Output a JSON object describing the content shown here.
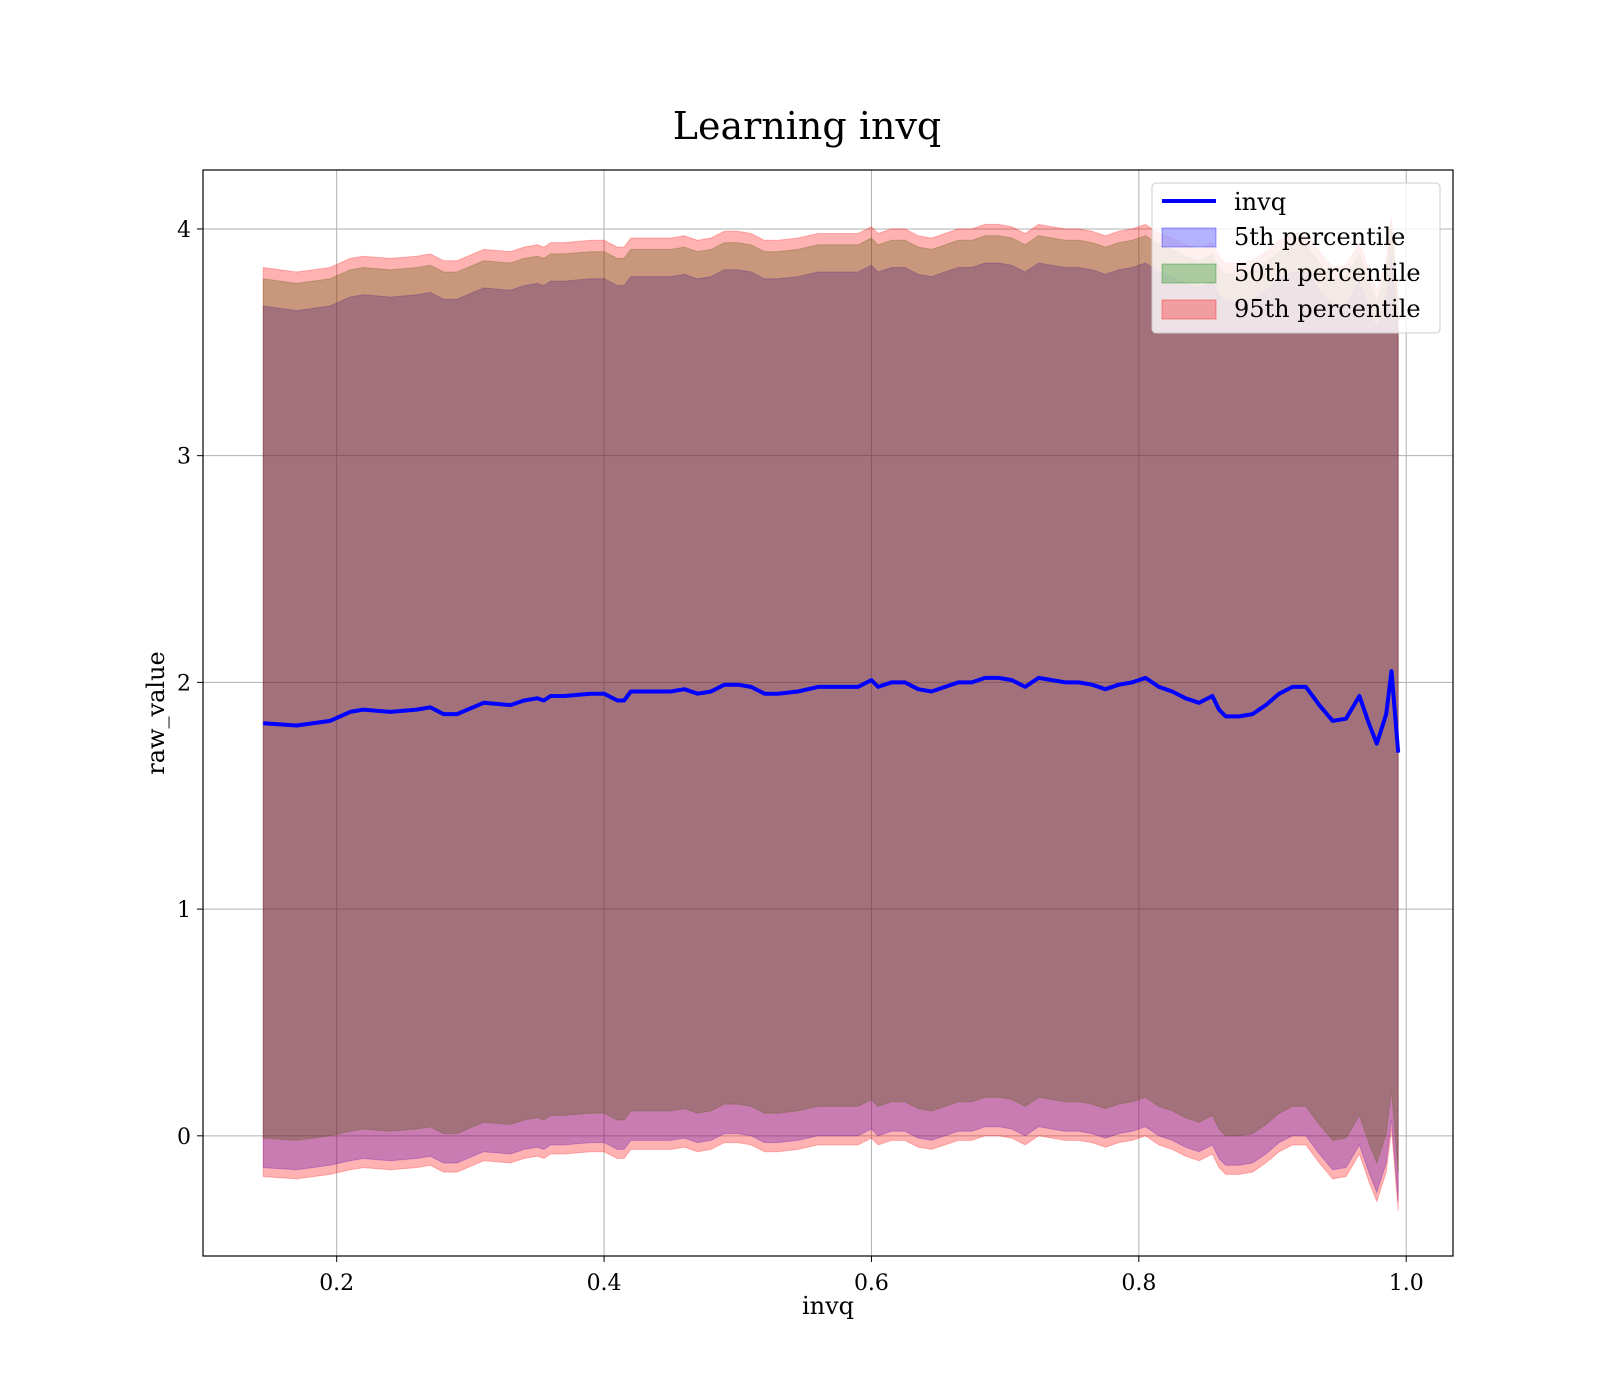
{
  "chart_data": {
    "type": "area",
    "title": "Learning invq",
    "xlabel": "invq",
    "ylabel": "raw_value",
    "xlim": [
      0.1,
      1.035
    ],
    "ylim": [
      -0.53,
      4.26
    ],
    "xticks": [
      0.2,
      0.4,
      0.6,
      0.8,
      1.0
    ],
    "xtick_labels": [
      "0.2",
      "0.4",
      "0.6",
      "0.8",
      "1.0"
    ],
    "yticks": [
      0,
      1,
      2,
      3,
      4
    ],
    "ytick_labels": [
      "0",
      "1",
      "2",
      "3",
      "4"
    ],
    "grid": true,
    "legend_position": "top-right",
    "x": [
      0.145,
      0.17,
      0.195,
      0.21,
      0.22,
      0.24,
      0.26,
      0.27,
      0.28,
      0.29,
      0.31,
      0.33,
      0.34,
      0.35,
      0.355,
      0.36,
      0.37,
      0.39,
      0.4,
      0.41,
      0.415,
      0.42,
      0.43,
      0.45,
      0.46,
      0.47,
      0.48,
      0.49,
      0.5,
      0.51,
      0.52,
      0.53,
      0.545,
      0.56,
      0.575,
      0.59,
      0.6,
      0.605,
      0.615,
      0.625,
      0.635,
      0.645,
      0.655,
      0.665,
      0.675,
      0.685,
      0.695,
      0.705,
      0.715,
      0.725,
      0.735,
      0.745,
      0.755,
      0.765,
      0.775,
      0.785,
      0.795,
      0.805,
      0.815,
      0.82,
      0.825,
      0.835,
      0.845,
      0.855,
      0.86,
      0.865,
      0.875,
      0.885,
      0.895,
      0.905,
      0.915,
      0.925,
      0.935,
      0.945,
      0.955,
      0.965,
      0.972,
      0.978,
      0.985,
      0.989,
      0.994
    ],
    "series": [
      {
        "name": "invq",
        "color": "#0000ff",
        "values": [
          1.82,
          1.81,
          1.83,
          1.87,
          1.88,
          1.87,
          1.88,
          1.89,
          1.86,
          1.86,
          1.91,
          1.9,
          1.92,
          1.93,
          1.92,
          1.94,
          1.94,
          1.95,
          1.95,
          1.92,
          1.92,
          1.96,
          1.96,
          1.96,
          1.97,
          1.95,
          1.96,
          1.99,
          1.99,
          1.98,
          1.95,
          1.95,
          1.96,
          1.98,
          1.98,
          1.98,
          2.01,
          1.98,
          2.0,
          2.0,
          1.97,
          1.96,
          1.98,
          2.0,
          2.0,
          2.02,
          2.02,
          2.01,
          1.98,
          2.02,
          2.01,
          2.0,
          2.0,
          1.99,
          1.97,
          1.99,
          2.0,
          2.02,
          1.98,
          1.97,
          1.96,
          1.93,
          1.91,
          1.94,
          1.88,
          1.85,
          1.85,
          1.86,
          1.9,
          1.95,
          1.98,
          1.98,
          1.9,
          1.83,
          1.84,
          1.94,
          1.82,
          1.73,
          1.86,
          2.05,
          1.69
        ]
      },
      {
        "name": "5th percentile",
        "color": "#0000ff",
        "lower": [
          -0.14,
          -0.15,
          -0.13,
          -0.11,
          -0.1,
          -0.11,
          -0.1,
          -0.09,
          -0.12,
          -0.12,
          -0.07,
          -0.08,
          -0.06,
          -0.05,
          -0.06,
          -0.04,
          -0.04,
          -0.03,
          -0.03,
          -0.06,
          -0.06,
          -0.02,
          -0.02,
          -0.02,
          -0.01,
          -0.03,
          -0.02,
          0.01,
          0.01,
          0.0,
          -0.03,
          -0.03,
          -0.02,
          0.0,
          0.0,
          0.0,
          0.03,
          0.0,
          0.02,
          0.02,
          -0.01,
          -0.02,
          0.0,
          0.02,
          0.02,
          0.04,
          0.04,
          0.03,
          0.0,
          0.04,
          0.03,
          0.02,
          0.02,
          0.01,
          -0.01,
          0.01,
          0.02,
          0.04,
          0.0,
          -0.01,
          -0.02,
          -0.05,
          -0.07,
          -0.04,
          -0.1,
          -0.13,
          -0.13,
          -0.12,
          -0.08,
          -0.03,
          0.0,
          0.0,
          -0.08,
          -0.15,
          -0.14,
          -0.04,
          -0.16,
          -0.25,
          -0.12,
          0.07,
          -0.29
        ],
        "upper": [
          3.66,
          3.64,
          3.66,
          3.7,
          3.71,
          3.7,
          3.71,
          3.72,
          3.69,
          3.69,
          3.74,
          3.73,
          3.75,
          3.76,
          3.75,
          3.77,
          3.77,
          3.78,
          3.78,
          3.75,
          3.75,
          3.79,
          3.79,
          3.79,
          3.8,
          3.78,
          3.79,
          3.82,
          3.82,
          3.81,
          3.78,
          3.78,
          3.79,
          3.81,
          3.81,
          3.81,
          3.84,
          3.81,
          3.83,
          3.83,
          3.8,
          3.79,
          3.81,
          3.83,
          3.83,
          3.85,
          3.85,
          3.84,
          3.81,
          3.85,
          3.84,
          3.83,
          3.83,
          3.82,
          3.8,
          3.82,
          3.83,
          3.85,
          3.81,
          3.8,
          3.79,
          3.76,
          3.74,
          3.77,
          3.71,
          3.68,
          3.68,
          3.69,
          3.73,
          3.78,
          3.81,
          3.81,
          3.73,
          3.66,
          3.67,
          3.77,
          3.65,
          3.56,
          3.69,
          3.88,
          3.52
        ]
      },
      {
        "name": "50th percentile",
        "color": "#008000",
        "lower": [
          -0.01,
          -0.02,
          0.0,
          0.02,
          0.03,
          0.02,
          0.03,
          0.04,
          0.01,
          0.01,
          0.06,
          0.05,
          0.07,
          0.08,
          0.07,
          0.09,
          0.09,
          0.1,
          0.1,
          0.07,
          0.07,
          0.11,
          0.11,
          0.11,
          0.12,
          0.1,
          0.11,
          0.14,
          0.14,
          0.13,
          0.1,
          0.1,
          0.11,
          0.13,
          0.13,
          0.13,
          0.16,
          0.13,
          0.15,
          0.15,
          0.12,
          0.11,
          0.13,
          0.15,
          0.15,
          0.17,
          0.17,
          0.16,
          0.13,
          0.17,
          0.16,
          0.15,
          0.15,
          0.14,
          0.12,
          0.14,
          0.15,
          0.17,
          0.13,
          0.12,
          0.11,
          0.08,
          0.06,
          0.09,
          0.03,
          0.0,
          0.0,
          0.01,
          0.05,
          0.1,
          0.13,
          0.13,
          0.05,
          -0.02,
          -0.01,
          0.09,
          -0.03,
          -0.12,
          0.01,
          0.2,
          -0.16
        ],
        "upper": [
          3.78,
          3.76,
          3.78,
          3.82,
          3.83,
          3.82,
          3.83,
          3.84,
          3.81,
          3.81,
          3.86,
          3.85,
          3.87,
          3.88,
          3.87,
          3.89,
          3.89,
          3.9,
          3.9,
          3.87,
          3.87,
          3.91,
          3.91,
          3.91,
          3.92,
          3.9,
          3.91,
          3.94,
          3.94,
          3.93,
          3.9,
          3.9,
          3.91,
          3.93,
          3.93,
          3.93,
          3.96,
          3.93,
          3.95,
          3.95,
          3.92,
          3.91,
          3.93,
          3.95,
          3.95,
          3.97,
          3.97,
          3.96,
          3.93,
          3.97,
          3.96,
          3.95,
          3.95,
          3.94,
          3.92,
          3.94,
          3.95,
          3.97,
          3.93,
          3.92,
          3.91,
          3.88,
          3.86,
          3.89,
          3.83,
          3.8,
          3.8,
          3.81,
          3.85,
          3.9,
          3.93,
          3.93,
          3.85,
          3.78,
          3.79,
          3.89,
          3.77,
          3.68,
          3.81,
          4.0,
          3.64
        ]
      },
      {
        "name": "95th percentile",
        "color": "#ff0000",
        "lower": [
          -0.18,
          -0.19,
          -0.17,
          -0.15,
          -0.14,
          -0.15,
          -0.14,
          -0.13,
          -0.16,
          -0.16,
          -0.11,
          -0.12,
          -0.1,
          -0.09,
          -0.1,
          -0.08,
          -0.08,
          -0.07,
          -0.07,
          -0.1,
          -0.1,
          -0.06,
          -0.06,
          -0.06,
          -0.05,
          -0.07,
          -0.06,
          -0.03,
          -0.03,
          -0.04,
          -0.07,
          -0.07,
          -0.06,
          -0.04,
          -0.04,
          -0.04,
          -0.01,
          -0.04,
          -0.02,
          -0.02,
          -0.05,
          -0.06,
          -0.04,
          -0.02,
          -0.02,
          0.0,
          0.0,
          -0.01,
          -0.04,
          0.0,
          -0.01,
          -0.02,
          -0.02,
          -0.03,
          -0.05,
          -0.03,
          -0.02,
          0.0,
          -0.04,
          -0.05,
          -0.06,
          -0.09,
          -0.11,
          -0.08,
          -0.14,
          -0.17,
          -0.17,
          -0.16,
          -0.12,
          -0.07,
          -0.04,
          -0.04,
          -0.12,
          -0.19,
          -0.18,
          -0.08,
          -0.2,
          -0.29,
          -0.16,
          0.03,
          -0.33
        ],
        "upper": [
          3.83,
          3.81,
          3.83,
          3.87,
          3.88,
          3.87,
          3.88,
          3.89,
          3.86,
          3.86,
          3.91,
          3.9,
          3.92,
          3.93,
          3.92,
          3.94,
          3.94,
          3.95,
          3.95,
          3.92,
          3.92,
          3.96,
          3.96,
          3.96,
          3.97,
          3.95,
          3.96,
          3.99,
          3.99,
          3.98,
          3.95,
          3.95,
          3.96,
          3.98,
          3.98,
          3.98,
          4.01,
          3.98,
          4.0,
          4.0,
          3.97,
          3.96,
          3.98,
          4.0,
          4.0,
          4.02,
          4.02,
          4.01,
          3.98,
          4.02,
          4.01,
          4.0,
          4.0,
          3.99,
          3.97,
          3.99,
          4.0,
          4.02,
          3.98,
          3.97,
          3.96,
          3.93,
          3.91,
          3.94,
          3.88,
          3.85,
          3.85,
          3.86,
          3.9,
          3.95,
          3.98,
          3.98,
          3.9,
          3.83,
          3.84,
          3.94,
          3.82,
          3.73,
          3.86,
          4.05,
          3.69
        ]
      }
    ]
  }
}
